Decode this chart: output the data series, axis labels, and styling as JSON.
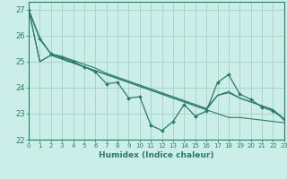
{
  "xlabel": "Humidex (Indice chaleur)",
  "xlim": [
    0,
    23
  ],
  "ylim": [
    22,
    27.3
  ],
  "yticks": [
    22,
    23,
    24,
    25,
    26,
    27
  ],
  "xticks": [
    0,
    1,
    2,
    3,
    4,
    5,
    6,
    7,
    8,
    9,
    10,
    11,
    12,
    13,
    14,
    15,
    16,
    17,
    18,
    19,
    20,
    21,
    22,
    23
  ],
  "bg_color": "#cceee8",
  "grid_color": "#aad4cc",
  "line_color": "#2a7a6a",
  "series_with_markers": [
    27.0,
    25.9,
    25.3,
    25.15,
    25.0,
    24.8,
    24.6,
    24.15,
    24.2,
    23.6,
    23.65,
    22.55,
    22.35,
    22.7,
    23.35,
    22.9,
    23.1,
    24.2,
    24.5,
    23.75,
    23.55,
    23.25,
    23.1,
    22.8
  ],
  "series_smooth": [
    [
      27.0,
      25.85,
      25.3,
      25.2,
      25.05,
      24.9,
      24.75,
      24.55,
      24.4,
      24.25,
      24.1,
      23.95,
      23.8,
      23.65,
      23.5,
      23.35,
      23.2,
      23.7,
      23.8,
      23.6,
      23.45,
      23.3,
      23.15,
      22.8
    ],
    [
      27.0,
      25.0,
      25.25,
      25.1,
      24.95,
      24.8,
      24.65,
      24.5,
      24.35,
      24.2,
      24.05,
      23.9,
      23.75,
      23.6,
      23.45,
      23.3,
      23.15,
      23.0,
      22.85,
      22.85,
      22.8,
      22.75,
      22.7,
      22.65
    ],
    [
      27.0,
      25.0,
      25.25,
      25.1,
      24.95,
      24.8,
      24.65,
      24.5,
      24.35,
      24.2,
      24.05,
      23.9,
      23.75,
      23.6,
      23.45,
      23.3,
      23.15,
      23.7,
      23.85,
      23.6,
      23.45,
      23.3,
      23.15,
      22.75
    ]
  ]
}
